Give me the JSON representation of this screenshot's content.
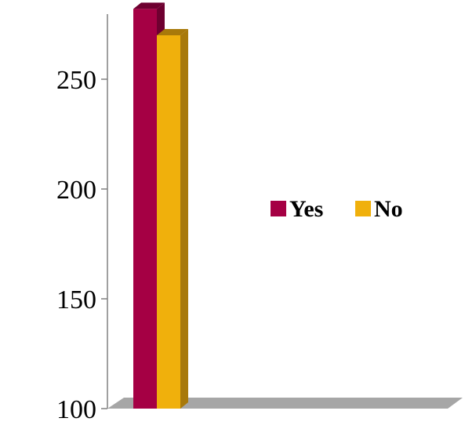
{
  "chart_data": {
    "type": "bar",
    "categories": [
      ""
    ],
    "series": [
      {
        "name": "Yes",
        "values": [
          282
        ],
        "color": "#a50044"
      },
      {
        "name": "No",
        "values": [
          270
        ],
        "color": "#f0b00c"
      }
    ],
    "title": "",
    "xlabel": "",
    "ylabel": "",
    "ylim": [
      100,
      300
    ],
    "yticks": [
      100,
      150,
      200,
      250
    ],
    "grid": false,
    "legend_position": "right"
  },
  "colors": {
    "floor": "#a6a6a6",
    "axis": "#808080",
    "yes_side": "#6e0030",
    "no_side": "#a8790a"
  }
}
